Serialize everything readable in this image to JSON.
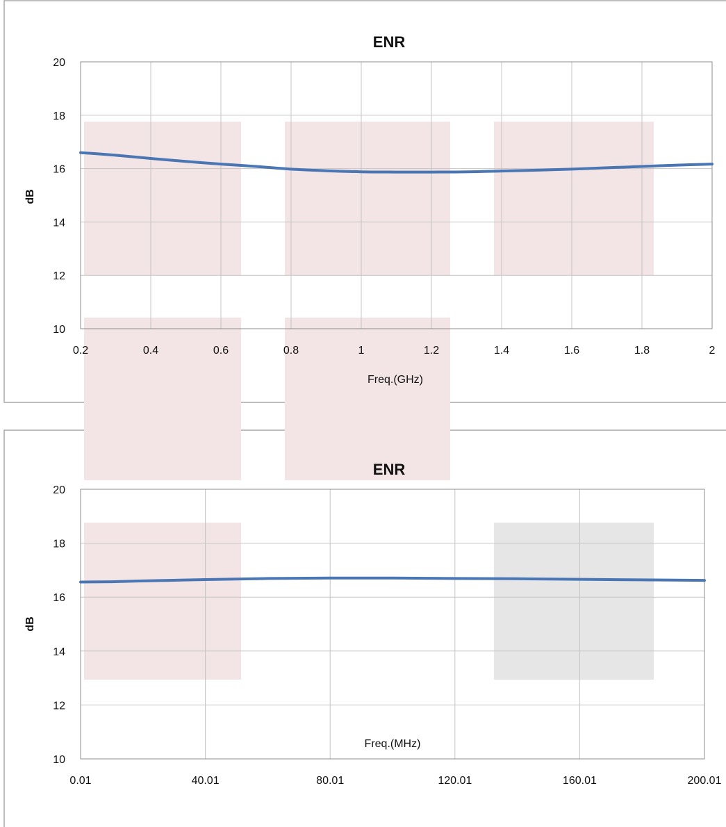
{
  "colors": {
    "series": "#4a76b4",
    "block_pink": "#f3e5e5",
    "block_gray": "#e6e6e6"
  },
  "chart_data": [
    {
      "type": "line",
      "title": "ENR",
      "xlabel": "Freq.(GHz)",
      "ylabel": "dB",
      "xlim": [
        0.2,
        2
      ],
      "ylim": [
        10,
        20
      ],
      "grid": true,
      "x_ticks": [
        0.2,
        0.4,
        0.6,
        0.8,
        1,
        1.2,
        1.4,
        1.6,
        1.8,
        2
      ],
      "x_tick_labels": [
        "0.2",
        "0.4",
        "0.6",
        "0.8",
        "1",
        "1.2",
        "1.4",
        "1.6",
        "1.8",
        "2"
      ],
      "y_ticks": [
        10,
        12,
        14,
        16,
        18,
        20
      ],
      "y_tick_labels": [
        "10",
        "12",
        "14",
        "16",
        "18",
        "20"
      ],
      "series": [
        {
          "x": [
            0.2,
            0.3,
            0.4,
            0.5,
            0.6,
            0.7,
            0.8,
            0.9,
            1.0,
            1.1,
            1.2,
            1.3,
            1.4,
            1.5,
            1.6,
            1.7,
            1.8,
            1.9,
            2.0
          ],
          "values": [
            16.6,
            16.5,
            16.38,
            16.27,
            16.17,
            16.08,
            15.98,
            15.92,
            15.88,
            15.87,
            15.87,
            15.88,
            15.91,
            15.94,
            15.98,
            16.03,
            16.08,
            16.13,
            16.17
          ]
        }
      ]
    },
    {
      "type": "line",
      "title": "ENR",
      "xlabel": "Freq.(MHz)",
      "ylabel": "dB",
      "xlim": [
        0.01,
        200.01
      ],
      "ylim": [
        10,
        20
      ],
      "grid": true,
      "x_ticks": [
        0.01,
        40.01,
        80.01,
        120.01,
        160.01,
        200.01
      ],
      "x_tick_labels": [
        "0.01",
        "40.01",
        "80.01",
        "120.01",
        "160.01",
        "200.01"
      ],
      "y_ticks": [
        10,
        12,
        14,
        16,
        18,
        20
      ],
      "y_tick_labels": [
        "10",
        "12",
        "14",
        "16",
        "18",
        "20"
      ],
      "series": [
        {
          "x": [
            0.01,
            10,
            20,
            40,
            60,
            80,
            100,
            120,
            140,
            160,
            180,
            200.01
          ],
          "values": [
            16.56,
            16.57,
            16.6,
            16.65,
            16.69,
            16.71,
            16.71,
            16.69,
            16.68,
            16.66,
            16.64,
            16.62
          ]
        }
      ]
    }
  ]
}
